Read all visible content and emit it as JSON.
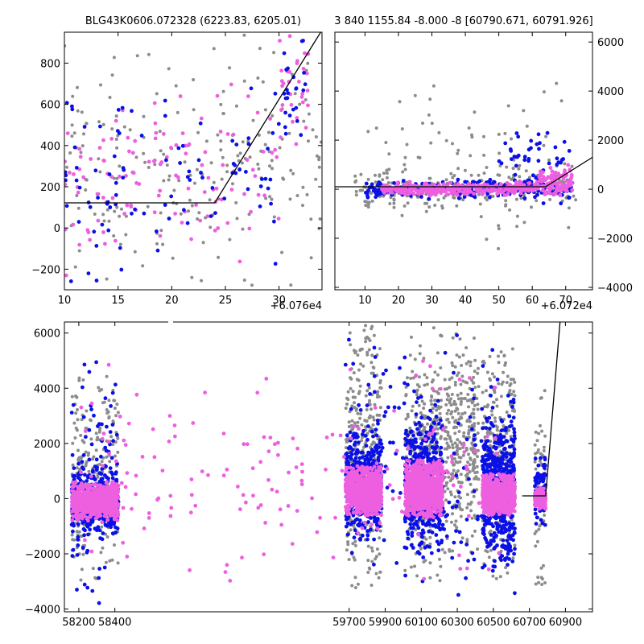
{
  "colors": {
    "grey": "#8c8c8c",
    "blue": "#0a10e6",
    "pink": "#ee5fe0",
    "model": "#000000",
    "frame": "#000000"
  },
  "chart_data": [
    {
      "id": "top-left",
      "type": "scatter",
      "title": "BLG43K0606.072328 (6223.83, 6205.01)",
      "xlim": [
        10,
        34
      ],
      "ylim": [
        -300,
        950
      ],
      "xticks": [
        10,
        15,
        20,
        25,
        30
      ],
      "yticks": [
        -200,
        0,
        200,
        400,
        600,
        800
      ],
      "offset_label": "+6.076e4",
      "y_axis_side": "left",
      "model_line": [
        [
          10,
          122
        ],
        [
          24,
          122
        ],
        [
          34,
          960
        ]
      ],
      "series": [
        {
          "color": "grey",
          "seed": 11,
          "count": 210,
          "clusters": [
            [
              10,
              34,
              -300,
              950,
              1
            ]
          ],
          "radius": 2.0
        },
        {
          "color": "pink",
          "seed": 12,
          "count": 150,
          "clusters": [
            [
              10,
              30,
              -250,
              700,
              0.8
            ],
            [
              30,
              33,
              400,
              950,
              0.2
            ]
          ],
          "radius": 2.4
        },
        {
          "color": "blue",
          "seed": 13,
          "count": 120,
          "clusters": [
            [
              10,
              30,
              -280,
              700,
              0.8
            ],
            [
              30,
              33,
              400,
              950,
              0.2
            ]
          ],
          "radius": 2.4
        }
      ]
    },
    {
      "id": "top-right",
      "type": "scatter",
      "title": "3 840 1155.84 -8.000 -8 [60790.671, 60791.926]",
      "xlim": [
        1,
        78
      ],
      "ylim": [
        -4100,
        6400
      ],
      "xticks": [
        10,
        20,
        30,
        40,
        50,
        60,
        70
      ],
      "yticks": [
        -4000,
        -2000,
        0,
        2000,
        4000,
        6000
      ],
      "offset_label": "+6.072e4",
      "y_axis_side": "right",
      "model_line": [
        [
          1,
          100
        ],
        [
          64,
          100
        ],
        [
          78,
          1300
        ]
      ],
      "series": [
        {
          "color": "grey",
          "seed": 21,
          "count": 320,
          "clusters": [
            [
              7,
              73,
              -800,
              800,
              0.7
            ],
            [
              10,
              72,
              -2500,
              4500,
              0.3
            ]
          ],
          "radius": 2.0
        },
        {
          "color": "blue",
          "seed": 22,
          "count": 300,
          "clusters": [
            [
              10,
              72,
              -400,
              400,
              0.8
            ],
            [
              50,
              72,
              -600,
              2500,
              0.2
            ]
          ],
          "radius": 2.4
        },
        {
          "color": "pink",
          "seed": 23,
          "count": 420,
          "clusters": [
            [
              15,
              72,
              -250,
              300,
              0.85
            ],
            [
              62,
              72,
              0,
              1000,
              0.15
            ]
          ],
          "radius": 2.4
        }
      ]
    },
    {
      "id": "bottom",
      "type": "scatter",
      "title": "",
      "xlim": [
        58120,
        61050
      ],
      "ylim": [
        -4100,
        6400
      ],
      "xticks": [
        58200,
        58400,
        59700,
        59900,
        60100,
        60300,
        60500,
        60700,
        60900
      ],
      "yticks": [
        -4000,
        -2000,
        0,
        2000,
        4000,
        6000
      ],
      "offset_label": "",
      "y_axis_side": "left",
      "model_line": [
        [
          60660,
          100
        ],
        [
          60790,
          100
        ],
        [
          60870,
          6400
        ]
      ],
      "series": [
        {
          "color": "grey",
          "seed": 31,
          "count": 1500,
          "clusters": [
            [
              58160,
              58420,
              -3000,
              4500,
              0.16
            ],
            [
              59680,
              59880,
              -3500,
              6300,
              0.22
            ],
            [
              60010,
              60220,
              -3000,
              6200,
              0.22
            ],
            [
              60230,
              60420,
              -2000,
              6000,
              0.2
            ],
            [
              60440,
              60620,
              -3000,
              6000,
              0.16
            ],
            [
              60730,
              60790,
              -3500,
              4000,
              0.04
            ]
          ],
          "radius": 2.0
        },
        {
          "color": "blue",
          "seed": 32,
          "count": 2200,
          "clusters": [
            [
              58160,
              58420,
              -1500,
              1200,
              0.16
            ],
            [
              59680,
              59880,
              -1500,
              2500,
              0.22
            ],
            [
              60010,
              60220,
              -2000,
              3000,
              0.22
            ],
            [
              60440,
              60620,
              -2500,
              3000,
              0.22
            ],
            [
              60730,
              60790,
              -1000,
              1500,
              0.04
            ],
            [
              58160,
              58420,
              -3800,
              6000,
              0.04
            ],
            [
              59680,
              60620,
              -4000,
              6200,
              0.1
            ]
          ],
          "radius": 2.4
        },
        {
          "color": "pink",
          "seed": 33,
          "count": 3200,
          "clusters": [
            [
              58160,
              58420,
              -800,
              600,
              0.2
            ],
            [
              59680,
              59880,
              -600,
              1200,
              0.24
            ],
            [
              60010,
              60220,
              -700,
              1400,
              0.24
            ],
            [
              60440,
              60620,
              -600,
              900,
              0.22
            ],
            [
              60730,
              60790,
              -400,
              400,
              0.04
            ],
            [
              58160,
              60620,
              -3000,
              5000,
              0.06
            ]
          ],
          "radius": 2.4
        }
      ]
    }
  ]
}
